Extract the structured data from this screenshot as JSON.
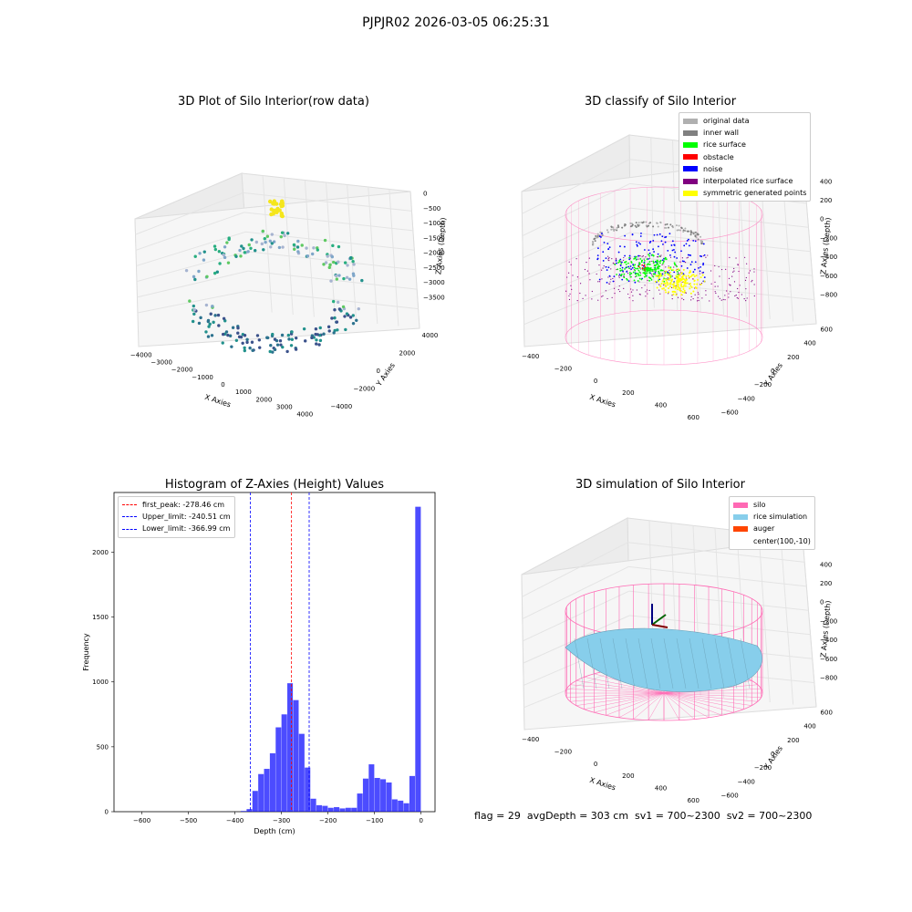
{
  "suptitle": "PJPJR02 2026-03-05 06:25:31",
  "status_text": "flag = 29  avgDepth = 303 cm  sv1 = 700~2300  sv2 = 700~2300",
  "colors": {
    "rice_surface": "#00ff00",
    "noise": "#0000ff",
    "original": "#b0b0b0",
    "inner_wall": "#808080",
    "obstacle": "#ff0000",
    "interp": "#800080",
    "symmetric": "#ffff00",
    "silo": "#ff69b4",
    "rice_sim": "#87ceeb",
    "auger": "#ff4500",
    "hist": "#0000ff",
    "peak": "#ff0000"
  },
  "panels": {
    "raw": {
      "title": "3D Plot of Silo Interior(row data)",
      "x_ticks": [
        "−4000",
        "−3000",
        "−2000",
        "−1000",
        "0",
        "1000",
        "2000",
        "3000",
        "4000"
      ],
      "y_ticks": [
        "−4000",
        "−2000",
        "0",
        "2000",
        "4000"
      ],
      "z_ticks": [
        "0",
        "−500",
        "−1000",
        "−1500",
        "−2000",
        "−2500",
        "−3000",
        "−3500"
      ],
      "xlabel": "X Axies",
      "ylabel": "Y Axies",
      "zlabel": "Z Axies (Depth)"
    },
    "classify": {
      "title": "3D classify of Silo Interior",
      "x_ticks": [
        "−400",
        "−200",
        "0",
        "200",
        "400",
        "600"
      ],
      "y_ticks": [
        "−600",
        "−400",
        "−200",
        "0",
        "200",
        "400",
        "600"
      ],
      "z_ticks": [
        "400",
        "200",
        "0",
        "−200",
        "−400",
        "−600",
        "−800"
      ],
      "xlabel": "X Axies",
      "ylabel": "Y Axies",
      "zlabel": "Z Axies (Depth)",
      "legend": [
        {
          "label": "original data",
          "color": "#b0b0b0"
        },
        {
          "label": "inner wall",
          "color": "#808080"
        },
        {
          "label": "rice surface",
          "color": "#00ff00"
        },
        {
          "label": "obstacle",
          "color": "#ff0000"
        },
        {
          "label": "noise",
          "color": "#0000ff"
        },
        {
          "label": "interpolated rice surface",
          "color": "#800080"
        },
        {
          "label": "symmetric generated points",
          "color": "#ffff00"
        }
      ]
    },
    "simulation": {
      "title": "3D simulation of Silo Interior",
      "x_ticks": [
        "−400",
        "−200",
        "0",
        "200",
        "400",
        "600"
      ],
      "y_ticks": [
        "−600",
        "−400",
        "−200",
        "0",
        "200",
        "400",
        "600"
      ],
      "z_ticks": [
        "400",
        "200",
        "0",
        "−200",
        "−400",
        "−600",
        "−800"
      ],
      "xlabel": "X Axies",
      "ylabel": "Y Axies",
      "zlabel": "Z Axies (Depth)",
      "legend": [
        {
          "label": "silo",
          "color": "#ff69b4"
        },
        {
          "label": "rice simulation",
          "color": "#87ceeb"
        },
        {
          "label": "auger",
          "color": "#ff4500"
        },
        {
          "label": "center(100,-10)",
          "color": ""
        }
      ]
    }
  },
  "chart_data": {
    "type": "bar",
    "title": "Histogram of Z-Axies (Height) Values",
    "xlabel": "Depth (cm)",
    "ylabel": "Frequency",
    "xlim": [
      -660,
      30
    ],
    "ylim": [
      0,
      2460
    ],
    "x_ticks": [
      -600,
      -500,
      -400,
      -300,
      -200,
      -100,
      0
    ],
    "x_tick_labels": [
      "−600",
      "−500",
      "−400",
      "−300",
      "−200",
      "−100",
      "0"
    ],
    "y_ticks": [
      0,
      500,
      1000,
      1500,
      2000
    ],
    "y_tick_labels": [
      "0",
      "500",
      "1000",
      "1500",
      "2000"
    ],
    "bin_width": 12.5,
    "bin_starts": [
      -387.5,
      -375,
      -362.5,
      -350,
      -337.5,
      -325,
      -312.5,
      -300,
      -287.5,
      -275,
      -262.5,
      -250,
      -237.5,
      -225,
      -212.5,
      -200,
      -187.5,
      -175,
      -162.5,
      -150,
      -137.5,
      -125,
      -112.5,
      -100,
      -87.5,
      -75,
      -62.5,
      -50,
      -37.5,
      -25,
      -12.5
    ],
    "counts": [
      5,
      20,
      160,
      290,
      330,
      450,
      650,
      750,
      990,
      860,
      600,
      340,
      100,
      50,
      45,
      30,
      35,
      25,
      30,
      30,
      140,
      255,
      365,
      260,
      250,
      225,
      95,
      85,
      65,
      275,
      2350
    ],
    "legend_position": "upper-left",
    "lines": [
      {
        "label": "first_peak: -278.46 cm",
        "x": -278.46,
        "color": "#ff0000"
      },
      {
        "label": "Upper_limit: -240.51 cm",
        "x": -240.51,
        "color": "#0000ff"
      },
      {
        "label": "Lower_limit: -366.99 cm",
        "x": -366.99,
        "color": "#0000ff"
      }
    ]
  }
}
